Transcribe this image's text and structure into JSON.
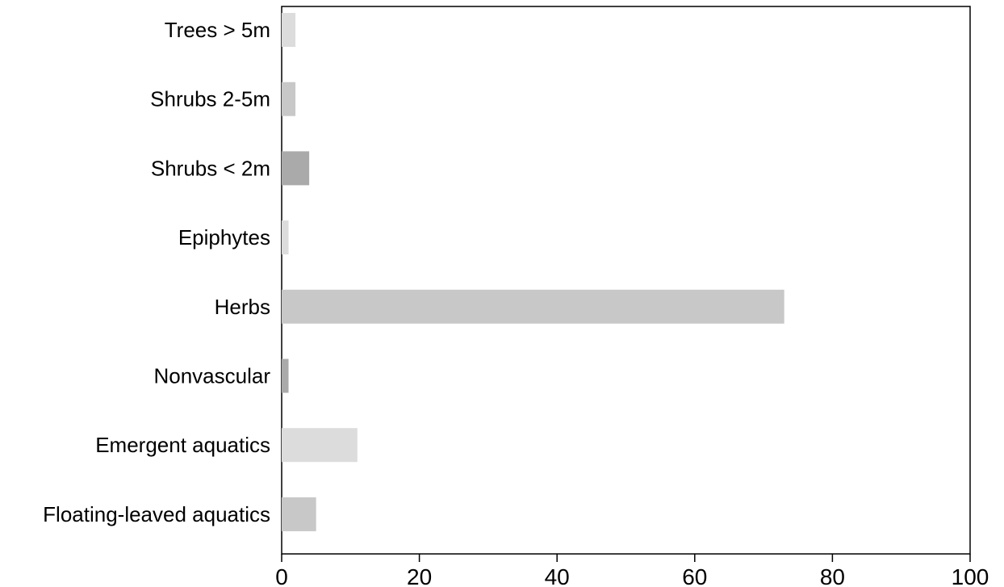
{
  "chart_data": {
    "type": "bar",
    "orientation": "horizontal",
    "categories": [
      "Trees > 5m",
      "Shrubs 2-5m",
      "Shrubs < 2m",
      "Epiphytes",
      "Herbs",
      "Nonvascular",
      "Emergent aquatics",
      "Floating-leaved aquatics"
    ],
    "values": [
      2,
      2,
      4,
      1,
      73,
      1,
      11,
      5
    ],
    "bar_colors": [
      "#dcdcdc",
      "#c8c8c8",
      "#aaaaaa",
      "#dcdcdc",
      "#c8c8c8",
      "#aaaaaa",
      "#dcdcdc",
      "#c8c8c8"
    ],
    "xlim": [
      0,
      100
    ],
    "xticks": [
      0,
      20,
      40,
      60,
      80,
      100
    ],
    "grid": false,
    "legend": false,
    "axis_color": "#000000"
  }
}
